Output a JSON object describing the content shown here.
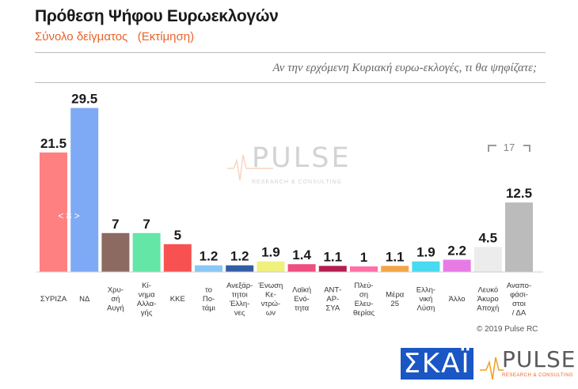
{
  "header": {
    "title": "Πρόθεση Ψήφου Ευρωεκλογών",
    "subtitle": "Σύνολο δείγματος   (Εκτίμηση)",
    "question": "Αν την ερχόμενη Κυριακή ευρω-εκλογές, τι θα ψηφίζατε;"
  },
  "footer": {
    "copyright": "© 2019 Pulse RC",
    "broadcaster_logo": "ΣΚΑΪ",
    "pulse_logo_word": "PULSE",
    "pulse_logo_sub": "RESEARCH & CONSULTING"
  },
  "watermark": {
    "word": "PULSE",
    "sub": "RESEARCH & CONSULTING"
  },
  "colors": {
    "title": "#1a1a1a",
    "subtitle": "#e8632a",
    "skai_blue": "#1a56c4"
  },
  "chart_data": {
    "type": "bar",
    "categories": [
      [
        "ΣΥΡΙΖΑ"
      ],
      [
        "ΝΔ"
      ],
      [
        "Χρυ-",
        "σή",
        "Αυγή"
      ],
      [
        "Κί-",
        "νημα",
        "Αλλα-",
        "γής"
      ],
      [
        "ΚΚΕ"
      ],
      [
        "το",
        "Πο-",
        "τάμι"
      ],
      [
        "Ανεξάρ-",
        "τητοι",
        "Έλλη-",
        "νες"
      ],
      [
        "Ένωση",
        "Κε-",
        "ντρώ-",
        "ων"
      ],
      [
        "Λαϊκή",
        "Ενό-",
        "τητα"
      ],
      [
        "ΑΝΤ-",
        "ΑΡ-",
        "ΣΥΑ"
      ],
      [
        "Πλεύ-",
        "ση",
        "Ελευ-",
        "θερίας"
      ],
      [
        "Μέρα",
        "25"
      ],
      [
        "Ελλη-",
        "νική",
        "Λύση"
      ],
      [
        "Άλλο"
      ],
      [
        "Λευκό",
        "Άκυρο",
        "Αποχή"
      ],
      [
        "Αναπο-",
        "φάσι-",
        "στοι",
        "/ ΔΑ"
      ]
    ],
    "values": [
      21.5,
      29.5,
      7,
      7,
      5,
      1.2,
      1.2,
      1.9,
      1.4,
      1.1,
      1,
      1.1,
      1.9,
      2.2,
      4.5,
      12.5
    ],
    "value_labels": [
      "21.5",
      "29.5",
      "7",
      "7",
      "5",
      "1.2",
      "1.2",
      "1.9",
      "1.4",
      "1.1",
      "1",
      "1.1",
      "1.9",
      "2.2",
      "4.5",
      "12.5"
    ],
    "colors": [
      "#ff8080",
      "#7eaaf5",
      "#8c6a61",
      "#64e6a7",
      "#f85151",
      "#89c8f4",
      "#335ca6",
      "#f0f07c",
      "#ef4e80",
      "#b51f4f",
      "#ff6fa3",
      "#f4a646",
      "#48daf0",
      "#e87ae6",
      "#ececec",
      "#bbbbbb"
    ],
    "annotations": [
      {
        "text": "< 8 >"
      },
      {
        "text": "17"
      }
    ],
    "ylim": [
      0,
      31
    ],
    "grid": false,
    "legend": "none"
  }
}
